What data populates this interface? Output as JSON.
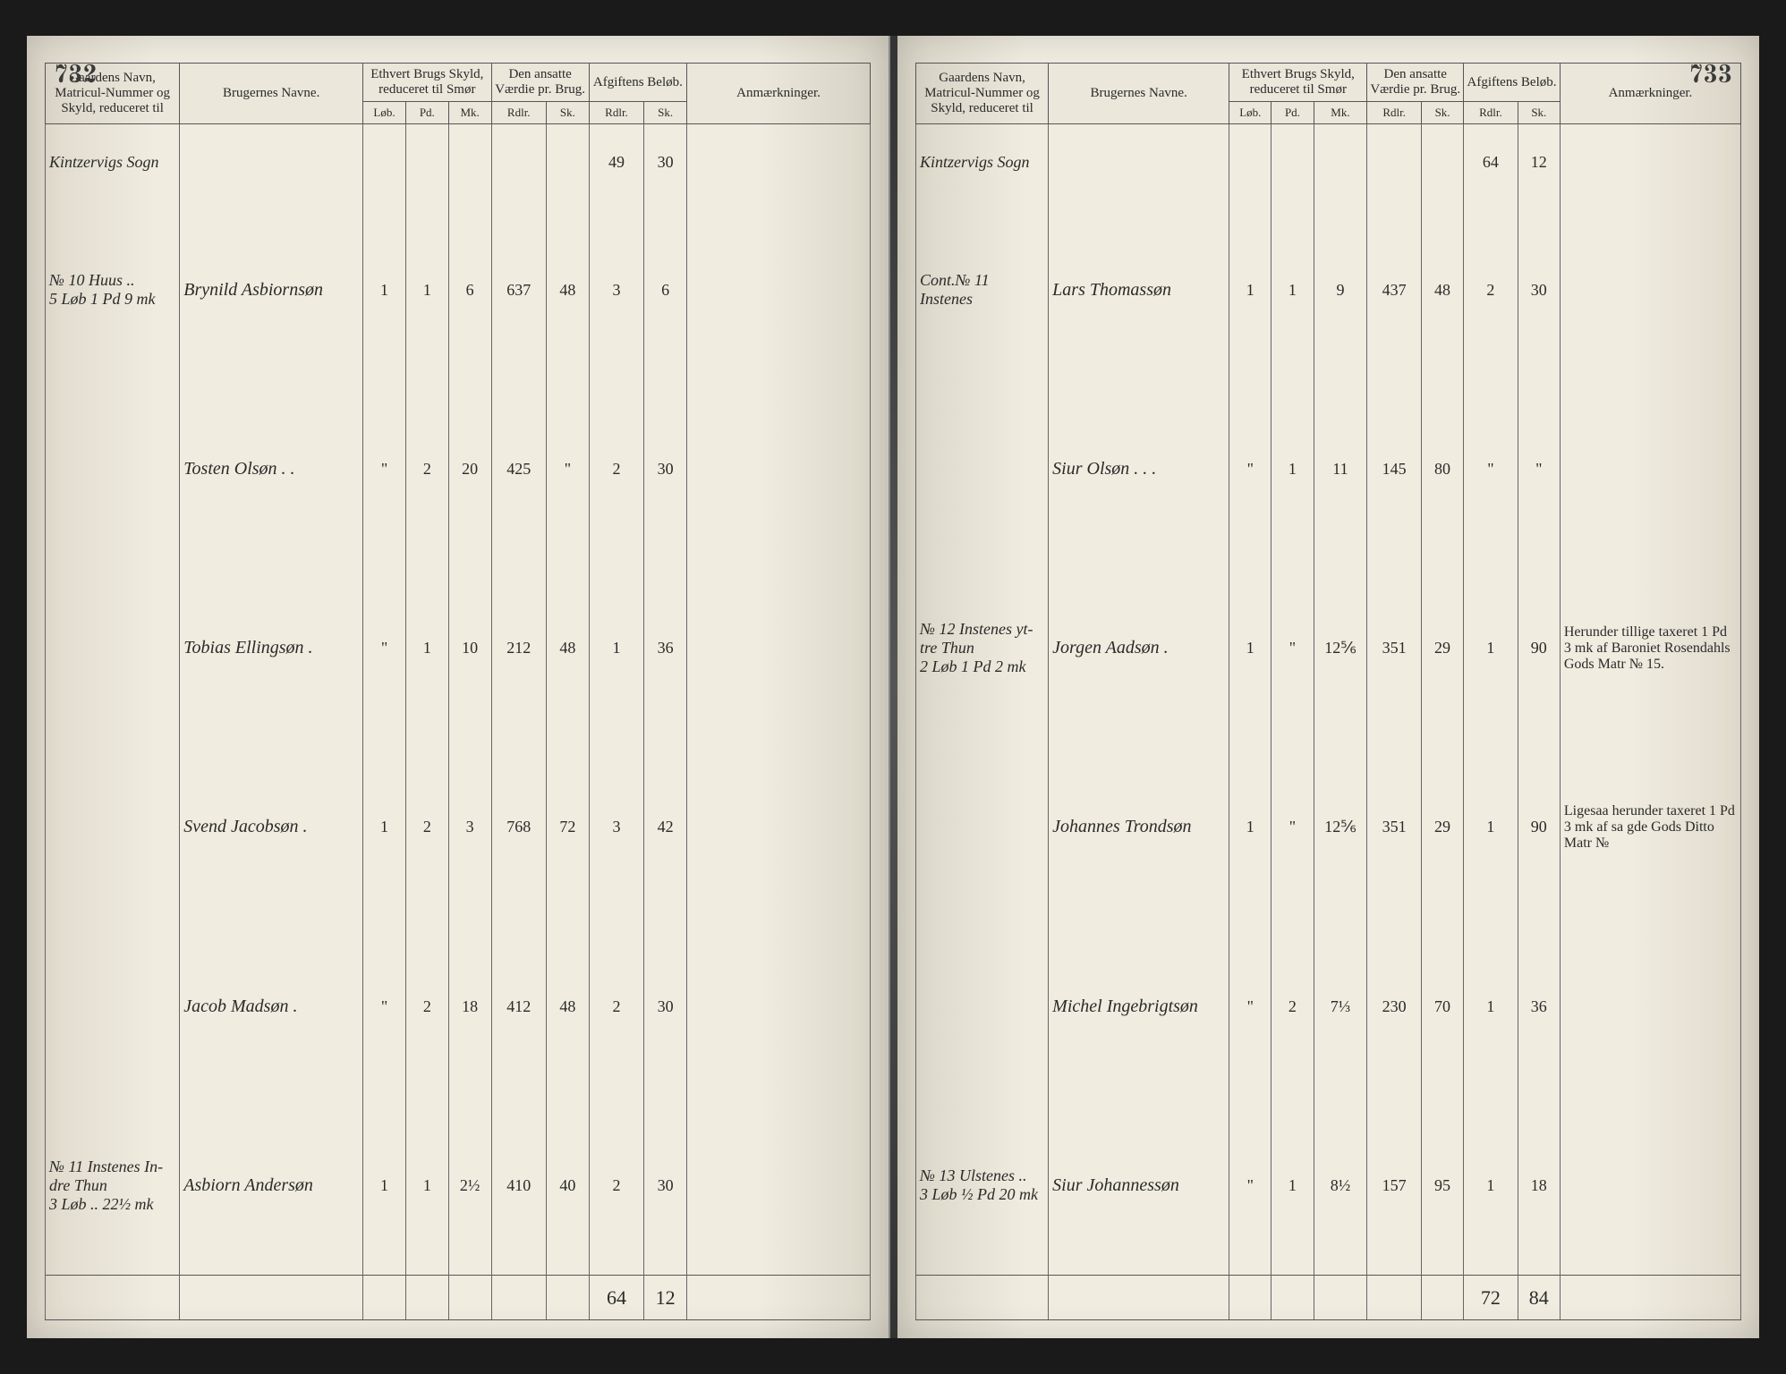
{
  "page_left_number": "732",
  "page_right_number": "733",
  "headers": {
    "col1": "Gaardens Navn, Matricul-Nummer og Skyld, reduceret til",
    "col2": "Brugernes Navne.",
    "col3": "Ethvert Brugs Skyld, reduceret til Smør",
    "col3a": "Løb.",
    "col3b": "Pd.",
    "col3c": "Mk.",
    "col4": "Den ansatte Værdie pr. Brug.",
    "col4a": "Rdlr.",
    "col4b": "Sk.",
    "col5": "Afgiftens Beløb.",
    "col5a": "Rdlr.",
    "col5b": "Sk.",
    "col6": "Anmærkninger."
  },
  "left": {
    "parish": "Kintzervigs Sogn",
    "carry": {
      "rdlr": "49",
      "sk": "30"
    },
    "rows": [
      {
        "gaard": "№ 10 Huus ..",
        "gaard2": "5 Løb 1 Pd 9 mk",
        "bruger": "Brynild Asbiornsøn",
        "l": "1",
        "p": "1",
        "m": "6",
        "vr": "637",
        "vs": "48",
        "ar": "3",
        "as": "6",
        "anm": ""
      },
      {
        "gaard": "",
        "bruger": "Tosten Olsøn . .",
        "l": "\"",
        "p": "2",
        "m": "20",
        "vr": "425",
        "vs": "\"",
        "ar": "2",
        "as": "30",
        "anm": ""
      },
      {
        "gaard": "",
        "bruger": "Tobias Ellingsøn .",
        "l": "\"",
        "p": "1",
        "m": "10",
        "vr": "212",
        "vs": "48",
        "ar": "1",
        "as": "36",
        "anm": ""
      },
      {
        "gaard": "",
        "bruger": "Svend Jacobsøn .",
        "l": "1",
        "p": "2",
        "m": "3",
        "vr": "768",
        "vs": "72",
        "ar": "3",
        "as": "42",
        "anm": ""
      },
      {
        "gaard": "",
        "bruger": "Jacob Madsøn .",
        "l": "\"",
        "p": "2",
        "m": "18",
        "vr": "412",
        "vs": "48",
        "ar": "2",
        "as": "30",
        "anm": ""
      },
      {
        "gaard": "№ 11 Instenes In-dre Thun",
        "gaard2": "3 Løb .. 22½ mk",
        "bruger": "Asbiorn Andersøn",
        "l": "1",
        "p": "1",
        "m": "2½",
        "vr": "410",
        "vs": "40",
        "ar": "2",
        "as": "30",
        "anm": ""
      }
    ],
    "sum": {
      "rdlr": "64",
      "sk": "12"
    }
  },
  "right": {
    "parish": "Kintzervigs Sogn",
    "carry": {
      "rdlr": "64",
      "sk": "12"
    },
    "rows": [
      {
        "gaard": "Cont.№ 11 Instenes",
        "bruger": "Lars Thomassøn",
        "l": "1",
        "p": "1",
        "m": "9",
        "vr": "437",
        "vs": "48",
        "ar": "2",
        "as": "30",
        "anm": ""
      },
      {
        "gaard": "",
        "bruger": "Siur Olsøn . . .",
        "l": "\"",
        "p": "1",
        "m": "11",
        "vr": "145",
        "vs": "80",
        "ar": "\"",
        "as": "\"",
        "anm": ""
      },
      {
        "gaard": "№ 12 Instenes yt-tre Thun",
        "gaard2": "2 Løb 1 Pd 2 mk",
        "bruger": "Jorgen Aadsøn .",
        "l": "1",
        "p": "\"",
        "m": "12⅚",
        "vr": "351",
        "vs": "29",
        "ar": "1",
        "as": "90",
        "anm": "Herunder tillige taxeret 1 Pd 3 mk af Baroniet Rosendahls Gods Matr № 15."
      },
      {
        "gaard": "",
        "bruger": "Johannes Trondsøn",
        "l": "1",
        "p": "\"",
        "m": "12⅚",
        "vr": "351",
        "vs": "29",
        "ar": "1",
        "as": "90",
        "anm": "Ligesaa herunder taxeret 1 Pd 3 mk af sa gde Gods Ditto Matr №"
      },
      {
        "gaard": "",
        "bruger": "Michel Ingebrigtsøn",
        "l": "\"",
        "p": "2",
        "m": "7⅓",
        "vr": "230",
        "vs": "70",
        "ar": "1",
        "as": "36",
        "anm": ""
      },
      {
        "gaard": "№ 13 Ulstenes ..",
        "gaard2": "3 Løb ½ Pd 20 mk",
        "bruger": "Siur Johannessøn",
        "l": "\"",
        "p": "1",
        "m": "8½",
        "vr": "157",
        "vs": "95",
        "ar": "1",
        "as": "18",
        "anm": ""
      }
    ],
    "sum": {
      "rdlr": "72",
      "sk": "84"
    }
  }
}
